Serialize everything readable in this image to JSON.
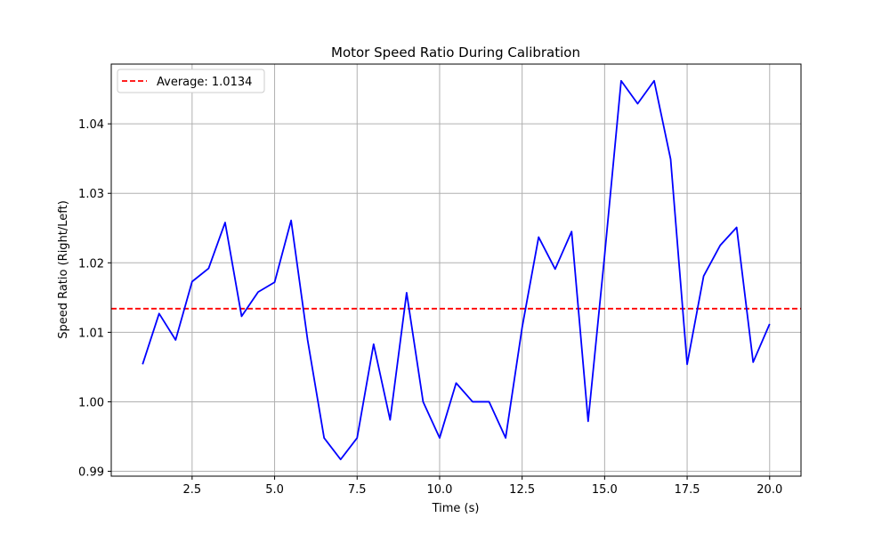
{
  "chart_data": {
    "type": "line",
    "title": "Motor Speed Ratio During Calibration",
    "xlabel": "Time (s)",
    "ylabel": "Speed Ratio (Right/Left)",
    "xlim": [
      0.05,
      20.95
    ],
    "ylim": [
      0.9893,
      1.0486
    ],
    "x_ticks": [
      2.5,
      5.0,
      7.5,
      10.0,
      12.5,
      15.0,
      17.5,
      20.0
    ],
    "x_tick_labels": [
      "2.5",
      "5.0",
      "7.5",
      "10.0",
      "12.5",
      "15.0",
      "17.5",
      "20.0"
    ],
    "y_ticks": [
      0.99,
      1.0,
      1.01,
      1.02,
      1.03,
      1.04
    ],
    "y_tick_labels": [
      "0.99",
      "1.00",
      "1.01",
      "1.02",
      "1.03",
      "1.04"
    ],
    "grid": true,
    "legend_position": "upper-left",
    "series": [
      {
        "color": "#0000ff",
        "x": [
          1.0,
          1.5,
          2.0,
          2.5,
          3.0,
          3.5,
          4.0,
          4.5,
          5.0,
          5.5,
          6.0,
          6.5,
          7.0,
          7.5,
          8.0,
          8.5,
          9.0,
          9.5,
          10.0,
          10.5,
          11.0,
          11.5,
          12.0,
          12.5,
          13.0,
          13.5,
          14.0,
          14.5,
          15.0,
          15.5,
          16.0,
          16.5,
          17.0,
          17.5,
          18.0,
          18.5,
          19.0,
          19.5,
          20.0
        ],
        "values": [
          1.0054,
          1.0127,
          1.0089,
          1.0173,
          1.0192,
          1.0258,
          1.0123,
          1.0158,
          1.0172,
          1.0261,
          1.0089,
          0.9948,
          0.9917,
          0.9948,
          1.0083,
          0.9974,
          1.0157,
          1.0,
          0.9948,
          1.0027,
          1.0,
          1.0,
          0.9948,
          1.0107,
          1.0237,
          1.0191,
          1.0245,
          0.9972,
          1.0211,
          1.0462,
          1.0429,
          1.0462,
          1.0349,
          1.0054,
          1.0181,
          1.0225,
          1.0251,
          1.0057,
          1.0112
        ]
      }
    ],
    "reference_line": {
      "name": "Average: 1.0134",
      "value": 1.0134,
      "color": "#ff0000",
      "style": "dashed"
    }
  }
}
